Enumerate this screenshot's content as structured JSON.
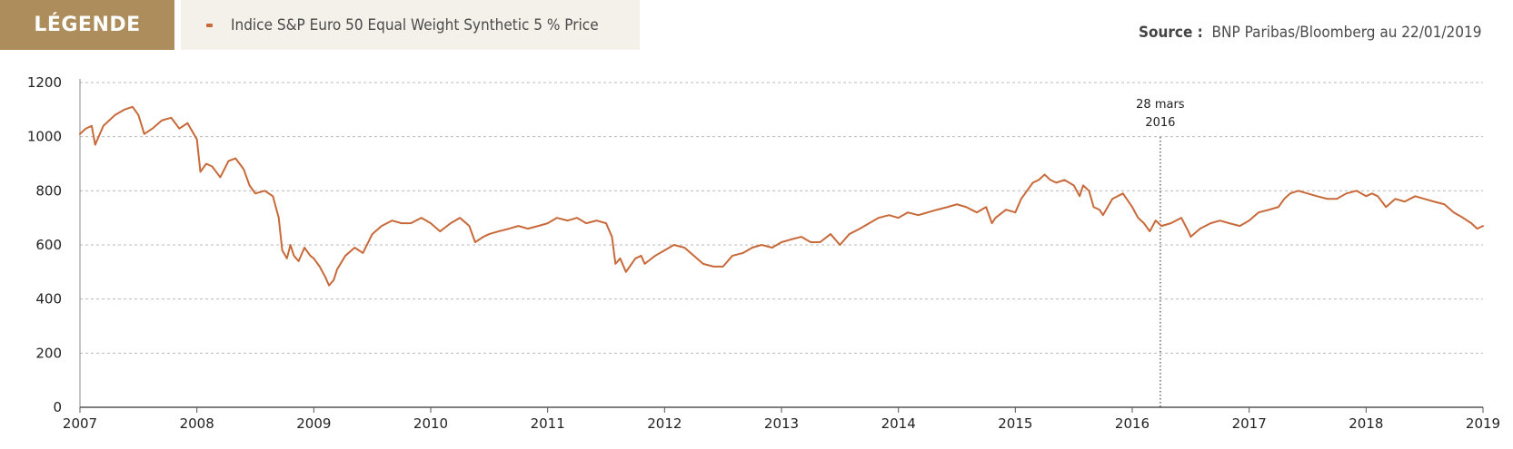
{
  "legend": {
    "tag_label": "LÉGENDE",
    "series_label": "Indice S&P Euro 50 Equal Weight Synthetic 5 % Price"
  },
  "source": {
    "label": "Source :",
    "text": "BNP Paribas/Bloomberg au 22/01/2019"
  },
  "colors": {
    "series": "#c8693a",
    "legend_tag_bg": "#ad8d5b",
    "legend_box_bg": "#f4f0ea",
    "grid": "#bbbbbb"
  },
  "chart_data": {
    "type": "line",
    "title": "",
    "xlabel": "",
    "ylabel": "",
    "xlim": [
      2007.0,
      2019.0
    ],
    "ylim": [
      0,
      1200
    ],
    "x_ticks": [
      "2007",
      "2008",
      "2009",
      "2010",
      "2011",
      "2012",
      "2013",
      "2014",
      "2015",
      "2016",
      "2017",
      "2018",
      "2019"
    ],
    "y_ticks": [
      0,
      200,
      400,
      600,
      800,
      1000,
      1200
    ],
    "grid": "horizontal dashed",
    "annotation": {
      "x": 2016.24,
      "line1": "28 mars",
      "line2": "2016"
    },
    "series": [
      {
        "name": "Indice S&P Euro 50 Equal Weight Synthetic 5 % Price",
        "x": [
          2007.0,
          2007.05,
          2007.1,
          2007.13,
          2007.2,
          2007.3,
          2007.38,
          2007.45,
          2007.5,
          2007.55,
          2007.62,
          2007.7,
          2007.78,
          2007.85,
          2007.92,
          2008.0,
          2008.03,
          2008.08,
          2008.13,
          2008.2,
          2008.27,
          2008.33,
          2008.4,
          2008.45,
          2008.5,
          2008.58,
          2008.65,
          2008.7,
          2008.73,
          2008.77,
          2008.8,
          2008.83,
          2008.87,
          2008.92,
          2008.97,
          2009.0,
          2009.05,
          2009.1,
          2009.13,
          2009.17,
          2009.2,
          2009.27,
          2009.35,
          2009.42,
          2009.5,
          2009.58,
          2009.67,
          2009.75,
          2009.83,
          2009.92,
          2010.0,
          2010.08,
          2010.17,
          2010.25,
          2010.33,
          2010.38,
          2010.45,
          2010.5,
          2010.58,
          2010.67,
          2010.75,
          2010.83,
          2010.92,
          2011.0,
          2011.08,
          2011.17,
          2011.25,
          2011.33,
          2011.42,
          2011.5,
          2011.55,
          2011.58,
          2011.62,
          2011.67,
          2011.75,
          2011.8,
          2011.83,
          2011.92,
          2012.0,
          2012.08,
          2012.17,
          2012.25,
          2012.33,
          2012.42,
          2012.5,
          2012.58,
          2012.67,
          2012.75,
          2012.83,
          2012.92,
          2013.0,
          2013.08,
          2013.17,
          2013.25,
          2013.33,
          2013.42,
          2013.5,
          2013.58,
          2013.67,
          2013.75,
          2013.83,
          2013.92,
          2014.0,
          2014.08,
          2014.17,
          2014.25,
          2014.33,
          2014.42,
          2014.5,
          2014.58,
          2014.67,
          2014.75,
          2014.8,
          2014.83,
          2014.92,
          2015.0,
          2015.05,
          2015.1,
          2015.15,
          2015.2,
          2015.25,
          2015.3,
          2015.35,
          2015.42,
          2015.5,
          2015.55,
          2015.58,
          2015.63,
          2015.67,
          2015.72,
          2015.75,
          2015.83,
          2015.92,
          2016.0,
          2016.05,
          2016.1,
          2016.15,
          2016.2,
          2016.25,
          2016.33,
          2016.42,
          2016.48,
          2016.5,
          2016.58,
          2016.67,
          2016.75,
          2016.83,
          2016.92,
          2017.0,
          2017.08,
          2017.17,
          2017.25,
          2017.3,
          2017.35,
          2017.42,
          2017.5,
          2017.58,
          2017.67,
          2017.75,
          2017.83,
          2017.92,
          2018.0,
          2018.05,
          2018.1,
          2018.17,
          2018.25,
          2018.33,
          2018.42,
          2018.5,
          2018.58,
          2018.67,
          2018.75,
          2018.83,
          2018.9,
          2018.95,
          2019.0
        ],
        "values": [
          1010,
          1030,
          1040,
          970,
          1040,
          1080,
          1100,
          1110,
          1080,
          1010,
          1030,
          1060,
          1070,
          1030,
          1050,
          990,
          870,
          900,
          890,
          850,
          910,
          920,
          880,
          820,
          790,
          800,
          780,
          700,
          580,
          550,
          600,
          560,
          540,
          590,
          560,
          550,
          520,
          480,
          450,
          470,
          510,
          560,
          590,
          570,
          640,
          670,
          690,
          680,
          680,
          700,
          680,
          650,
          680,
          700,
          670,
          610,
          630,
          640,
          650,
          660,
          670,
          660,
          670,
          680,
          700,
          690,
          700,
          680,
          690,
          680,
          630,
          530,
          550,
          500,
          550,
          560,
          530,
          560,
          580,
          600,
          590,
          560,
          530,
          520,
          520,
          560,
          570,
          590,
          600,
          590,
          610,
          620,
          630,
          610,
          610,
          640,
          600,
          640,
          660,
          680,
          700,
          710,
          700,
          720,
          710,
          720,
          730,
          740,
          750,
          740,
          720,
          740,
          680,
          700,
          730,
          720,
          770,
          800,
          830,
          840,
          860,
          840,
          830,
          840,
          820,
          780,
          820,
          800,
          740,
          730,
          710,
          770,
          790,
          740,
          700,
          680,
          650,
          690,
          670,
          680,
          700,
          650,
          630,
          660,
          680,
          690,
          680,
          670,
          690,
          720,
          730,
          740,
          770,
          790,
          800,
          790,
          780,
          770,
          770,
          790,
          800,
          780,
          790,
          780,
          740,
          770,
          760,
          780,
          770,
          760,
          750,
          720,
          700,
          680,
          660,
          670
        ]
      }
    ]
  }
}
